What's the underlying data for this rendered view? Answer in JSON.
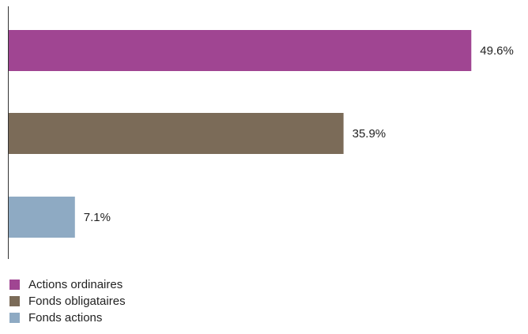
{
  "chart_data": {
    "type": "bar",
    "orientation": "horizontal",
    "categories": [
      "Actions ordinaires",
      "Fonds obligataires",
      "Fonds actions"
    ],
    "values": [
      49.6,
      35.9,
      7.1
    ],
    "value_labels": [
      "49.6%",
      "35.9%",
      "7.1%"
    ],
    "colors": [
      "#a04592",
      "#7b6b58",
      "#8eaac3"
    ],
    "xlim": [
      0,
      50
    ],
    "unit": "%",
    "grid": false,
    "legend_position": "bottom-left"
  },
  "legend": [
    {
      "label": "Actions ordinaires",
      "color": "#a04592"
    },
    {
      "label": "Fonds obligataires",
      "color": "#7b6b58"
    },
    {
      "label": "Fonds actions",
      "color": "#8eaac3"
    }
  ]
}
